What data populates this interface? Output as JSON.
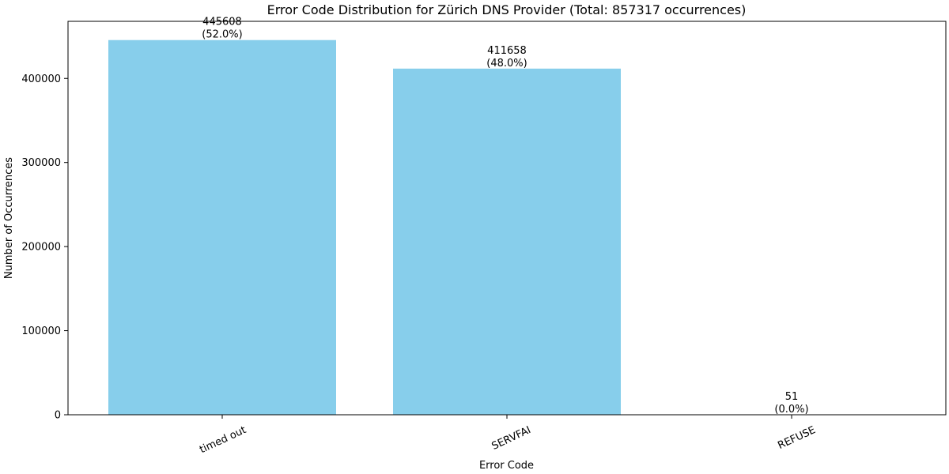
{
  "chart_data": {
    "type": "bar",
    "title": "Error Code Distribution for Zürich DNS Provider (Total: 857317 occurrences)",
    "xlabel": "Error Code",
    "ylabel": "Number of Occurrences",
    "categories": [
      "timed out",
      "SERVFAI",
      "REFUSE"
    ],
    "values": [
      445608,
      411658,
      51
    ],
    "percent_labels": [
      "(52.0%)",
      "(48.0%)",
      "(0.0%)"
    ],
    "value_labels": [
      "445608",
      "411658",
      "51"
    ],
    "yticks": [
      0,
      100000,
      200000,
      300000,
      400000
    ],
    "ytick_labels": [
      "0",
      "100000",
      "200000",
      "300000",
      "400000"
    ],
    "ylim": [
      0,
      467888
    ],
    "bar_color": "#87ceeb",
    "grid": false,
    "xtick_rotation_deg": -25
  }
}
